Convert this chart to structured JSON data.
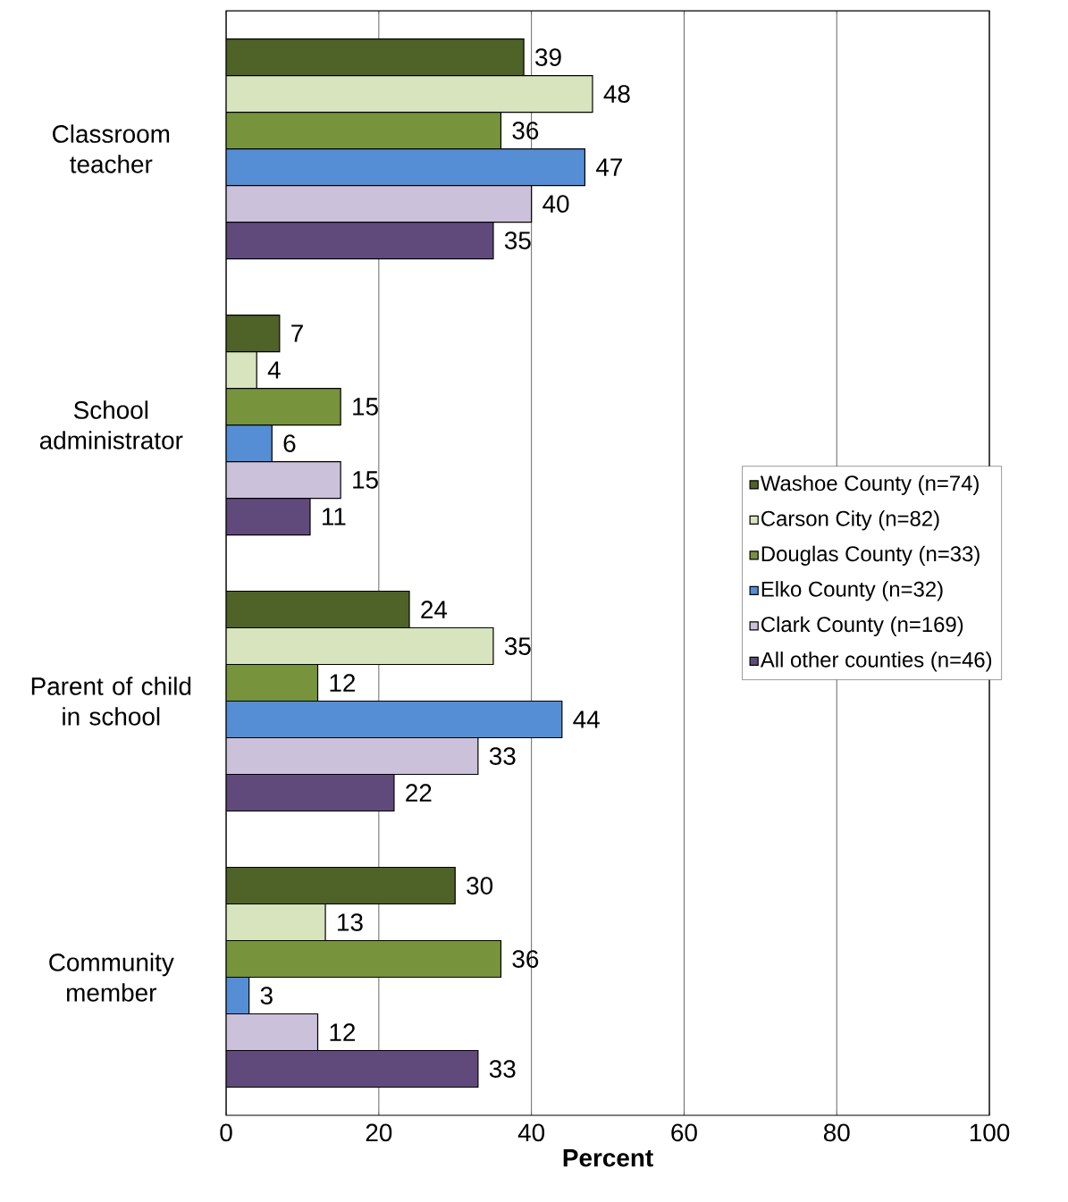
{
  "chart_data": {
    "type": "bar",
    "orientation": "horizontal",
    "categories": [
      "Classroom teacher",
      "School administrator",
      "Parent of child in school",
      "Community member"
    ],
    "series": [
      {
        "name": "Washoe County (n=74)",
        "color": "#4f6228",
        "values": [
          39,
          7,
          24,
          30
        ]
      },
      {
        "name": "Carson City (n=82)",
        "color": "#d7e4bd",
        "values": [
          48,
          4,
          35,
          13
        ]
      },
      {
        "name": "Douglas County (n=33)",
        "color": "#77933c",
        "values": [
          36,
          15,
          12,
          36
        ]
      },
      {
        "name": "Elko County (n=32)",
        "color": "#558ed5",
        "values": [
          47,
          6,
          44,
          3
        ]
      },
      {
        "name": "Clark County (n=169)",
        "color": "#ccc1da",
        "values": [
          40,
          15,
          33,
          12
        ]
      },
      {
        "name": "All other counties (n=46)",
        "color": "#604a7b",
        "values": [
          35,
          11,
          22,
          33
        ]
      }
    ],
    "xlim": [
      0,
      100
    ],
    "xticks": [
      0,
      20,
      40,
      60,
      80,
      100
    ],
    "xlabel": "Percent",
    "grid": "x",
    "legend": "right",
    "data_labels": true
  }
}
